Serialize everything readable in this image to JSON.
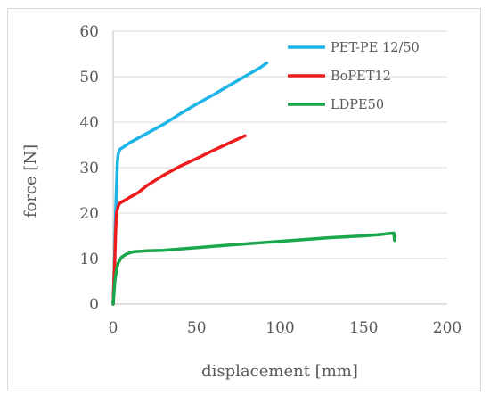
{
  "chart_data": {
    "type": "line",
    "xlabel": "displacement [mm]",
    "ylabel": "force [N]",
    "xlim": [
      0,
      200
    ],
    "ylim": [
      0,
      60
    ],
    "x_ticks": [
      0,
      50,
      100,
      150,
      200
    ],
    "y_ticks": [
      0,
      10,
      20,
      30,
      40,
      50,
      60
    ],
    "grid": "horizontal",
    "legend_position": "top-right",
    "series": [
      {
        "name": "PET-PE 12/50",
        "color": "#1fb4e8",
        "points": [
          [
            0,
            0
          ],
          [
            1,
            12
          ],
          [
            1.5,
            20
          ],
          [
            2,
            26
          ],
          [
            2.5,
            31
          ],
          [
            3,
            33
          ],
          [
            4,
            34
          ],
          [
            6,
            34.5
          ],
          [
            10,
            35.5
          ],
          [
            20,
            37.5
          ],
          [
            30,
            39.5
          ],
          [
            40,
            41.8
          ],
          [
            50,
            44
          ],
          [
            60,
            46
          ],
          [
            70,
            48.2
          ],
          [
            80,
            50.3
          ],
          [
            88,
            52
          ],
          [
            92,
            53
          ]
        ]
      },
      {
        "name": "BoPET12",
        "color": "#ee1c1c",
        "points": [
          [
            0,
            0
          ],
          [
            1,
            10
          ],
          [
            1.5,
            16
          ],
          [
            2,
            20
          ],
          [
            3,
            21.5
          ],
          [
            4,
            22.2
          ],
          [
            6,
            22.6
          ],
          [
            8,
            23
          ],
          [
            10,
            23.5
          ],
          [
            15,
            24.5
          ],
          [
            20,
            26
          ],
          [
            30,
            28.3
          ],
          [
            40,
            30.3
          ],
          [
            50,
            32
          ],
          [
            60,
            33.8
          ],
          [
            70,
            35.5
          ],
          [
            79,
            37
          ]
        ]
      },
      {
        "name": "LDPE50",
        "color": "#1aa64a",
        "points": [
          [
            0,
            0
          ],
          [
            1,
            5
          ],
          [
            2,
            7.5
          ],
          [
            3,
            9
          ],
          [
            5,
            10.3
          ],
          [
            8,
            11
          ],
          [
            12,
            11.5
          ],
          [
            20,
            11.7
          ],
          [
            30,
            11.8
          ],
          [
            40,
            12.1
          ],
          [
            50,
            12.4
          ],
          [
            70,
            13
          ],
          [
            100,
            13.8
          ],
          [
            130,
            14.6
          ],
          [
            150,
            15
          ],
          [
            160,
            15.3
          ],
          [
            168,
            15.6
          ],
          [
            168.5,
            14
          ]
        ]
      }
    ]
  }
}
